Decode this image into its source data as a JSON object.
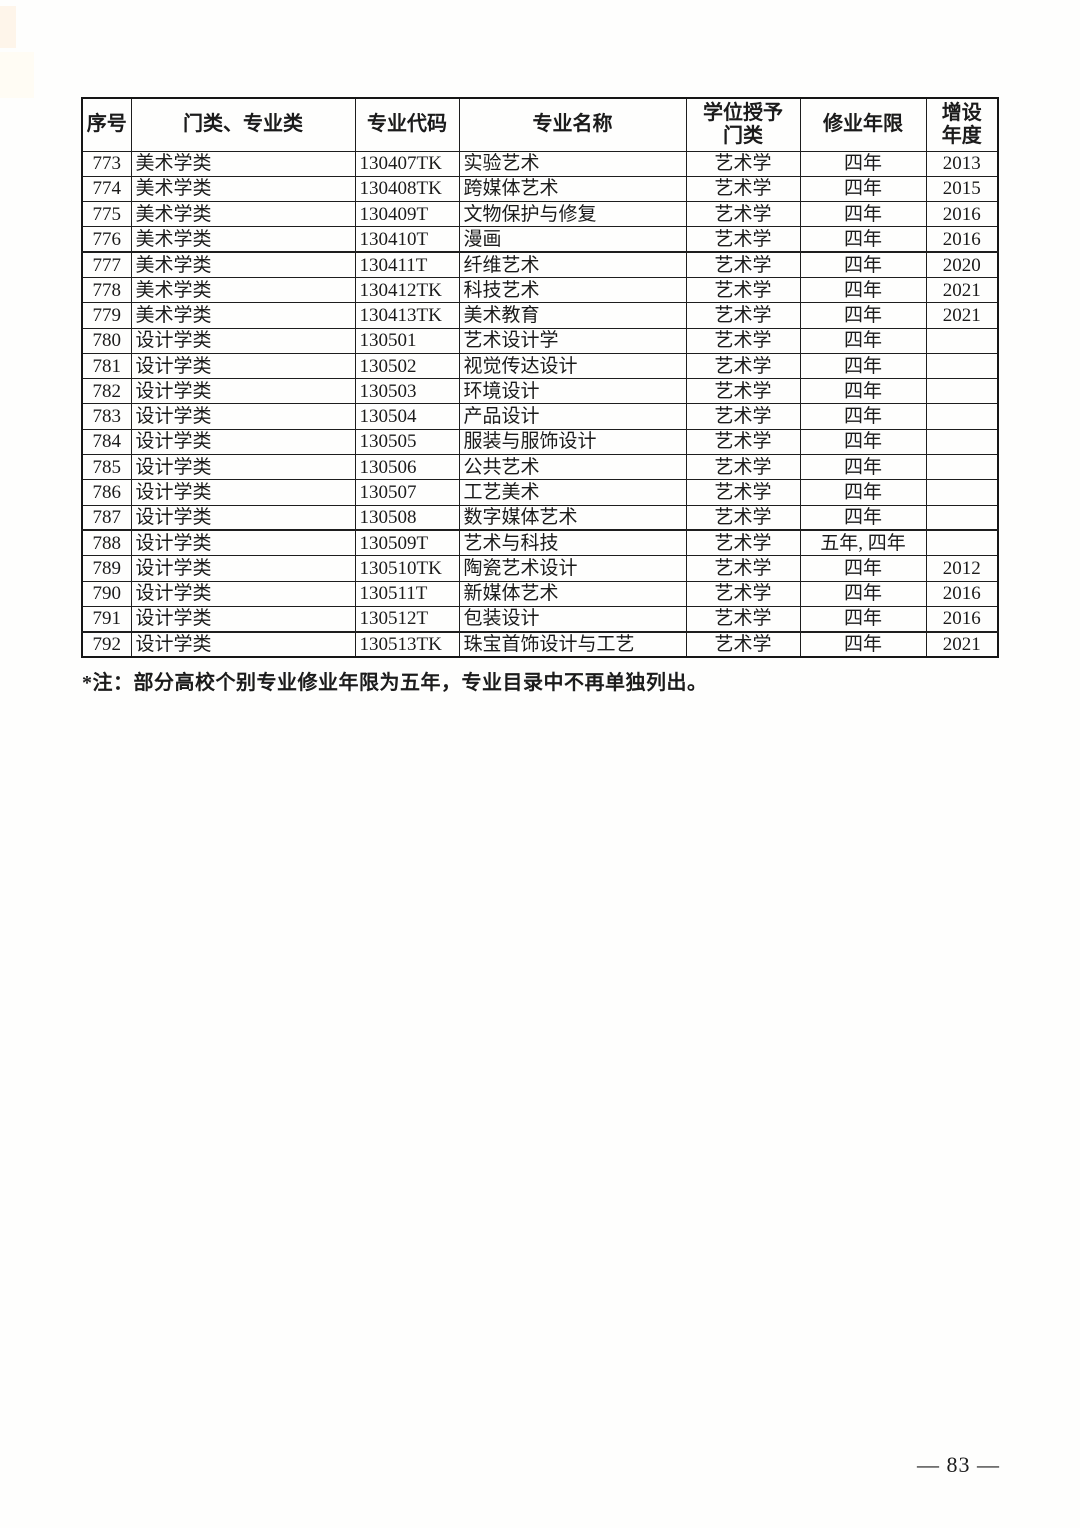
{
  "page": {
    "footnote": "*注：部分高校个别专业修业年限为五年，专业目录中不再单独列出。",
    "number_label": "— 83 —"
  },
  "table": {
    "headers": [
      {
        "line1": "序号",
        "line2": ""
      },
      {
        "line1": "门类、专业类",
        "line2": ""
      },
      {
        "line1": "专业代码",
        "line2": ""
      },
      {
        "line1": "专业名称",
        "line2": ""
      },
      {
        "line1": "学位授予",
        "line2": "门类"
      },
      {
        "line1": "修业年限",
        "line2": ""
      },
      {
        "line1": "增设",
        "line2": "年度"
      }
    ],
    "row_keys": [
      "seq",
      "category",
      "code",
      "name",
      "degree",
      "years",
      "year"
    ],
    "rows": [
      {
        "seq": "773",
        "category": "美术学类",
        "code": "130407TK",
        "name": "实验艺术",
        "degree": "艺术学",
        "years": "四年",
        "year": "2013",
        "sep": false
      },
      {
        "seq": "774",
        "category": "美术学类",
        "code": "130408TK",
        "name": "跨媒体艺术",
        "degree": "艺术学",
        "years": "四年",
        "year": "2015",
        "sep": false
      },
      {
        "seq": "775",
        "category": "美术学类",
        "code": "130409T",
        "name": "文物保护与修复",
        "degree": "艺术学",
        "years": "四年",
        "year": "2016",
        "sep": false
      },
      {
        "seq": "776",
        "category": "美术学类",
        "code": "130410T",
        "name": "漫画",
        "degree": "艺术学",
        "years": "四年",
        "year": "2016",
        "sep": false
      },
      {
        "seq": "777",
        "category": "美术学类",
        "code": "130411T",
        "name": "纤维艺术",
        "degree": "艺术学",
        "years": "四年",
        "year": "2020",
        "sep": true
      },
      {
        "seq": "778",
        "category": "美术学类",
        "code": "130412TK",
        "name": "科技艺术",
        "degree": "艺术学",
        "years": "四年",
        "year": "2021",
        "sep": false
      },
      {
        "seq": "779",
        "category": "美术学类",
        "code": "130413TK",
        "name": "美术教育",
        "degree": "艺术学",
        "years": "四年",
        "year": "2021",
        "sep": false
      },
      {
        "seq": "780",
        "category": "设计学类",
        "code": "130501",
        "name": "艺术设计学",
        "degree": "艺术学",
        "years": "四年",
        "year": "",
        "sep": false
      },
      {
        "seq": "781",
        "category": "设计学类",
        "code": "130502",
        "name": "视觉传达设计",
        "degree": "艺术学",
        "years": "四年",
        "year": "",
        "sep": false
      },
      {
        "seq": "782",
        "category": "设计学类",
        "code": "130503",
        "name": "环境设计",
        "degree": "艺术学",
        "years": "四年",
        "year": "",
        "sep": false
      },
      {
        "seq": "783",
        "category": "设计学类",
        "code": "130504",
        "name": "产品设计",
        "degree": "艺术学",
        "years": "四年",
        "year": "",
        "sep": false
      },
      {
        "seq": "784",
        "category": "设计学类",
        "code": "130505",
        "name": "服装与服饰设计",
        "degree": "艺术学",
        "years": "四年",
        "year": "",
        "sep": false
      },
      {
        "seq": "785",
        "category": "设计学类",
        "code": "130506",
        "name": "公共艺术",
        "degree": "艺术学",
        "years": "四年",
        "year": "",
        "sep": false
      },
      {
        "seq": "786",
        "category": "设计学类",
        "code": "130507",
        "name": "工艺美术",
        "degree": "艺术学",
        "years": "四年",
        "year": "",
        "sep": false
      },
      {
        "seq": "787",
        "category": "设计学类",
        "code": "130508",
        "name": "数字媒体艺术",
        "degree": "艺术学",
        "years": "四年",
        "year": "",
        "sep": false
      },
      {
        "seq": "788",
        "category": "设计学类",
        "code": "130509T",
        "name": "艺术与科技",
        "degree": "艺术学",
        "years": "五年, 四年",
        "year": "",
        "sep": true
      },
      {
        "seq": "789",
        "category": "设计学类",
        "code": "130510TK",
        "name": "陶瓷艺术设计",
        "degree": "艺术学",
        "years": "四年",
        "year": "2012",
        "sep": false
      },
      {
        "seq": "790",
        "category": "设计学类",
        "code": "130511T",
        "name": "新媒体艺术",
        "degree": "艺术学",
        "years": "四年",
        "year": "2016",
        "sep": false
      },
      {
        "seq": "791",
        "category": "设计学类",
        "code": "130512T",
        "name": "包装设计",
        "degree": "艺术学",
        "years": "四年",
        "year": "2016",
        "sep": false
      },
      {
        "seq": "792",
        "category": "设计学类",
        "code": "130513TK",
        "name": "珠宝首饰设计与工艺",
        "degree": "艺术学",
        "years": "四年",
        "year": "2021",
        "sep": true
      }
    ]
  }
}
